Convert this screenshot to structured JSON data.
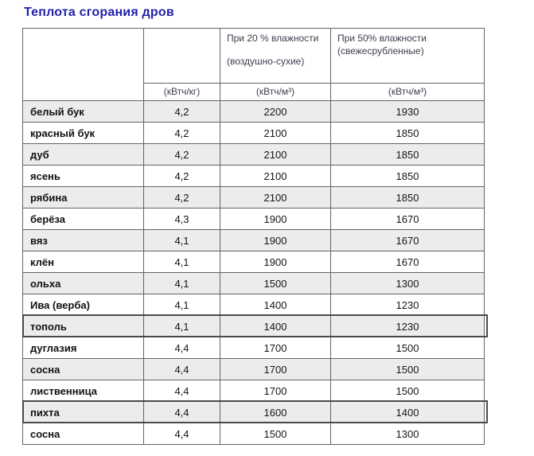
{
  "page_title": "Теплота сгорания дров",
  "colors": {
    "title_blue": "#2323ad",
    "header_text": "#3d3d4d",
    "row_shade": "#ececec",
    "cell_border": "#646464",
    "box_border": "#4a4a4a"
  },
  "table": {
    "header": {
      "moisture20": {
        "line1": "При 20 % влажности",
        "line2": "(воздушно-сухие)"
      },
      "moisture50": {
        "line1": "При 50% влажности",
        "line2": "(свежесрубленные)"
      },
      "unit_kg": "(кВтч/кг)",
      "unit_m3_20": "(кВтч/м³)",
      "unit_m3_50": "(кВтч/м³)"
    },
    "rows": [
      {
        "name": "белый бук",
        "kwh_kg": "4,2",
        "kwh_m3_20": "2200",
        "kwh_m3_50": "1930",
        "shaded": true,
        "boxed": false
      },
      {
        "name": "красный бук",
        "kwh_kg": "4,2",
        "kwh_m3_20": "2100",
        "kwh_m3_50": "1850",
        "shaded": false,
        "boxed": false
      },
      {
        "name": "дуб",
        "kwh_kg": "4,2",
        "kwh_m3_20": "2100",
        "kwh_m3_50": "1850",
        "shaded": true,
        "boxed": false
      },
      {
        "name": "ясень",
        "kwh_kg": "4,2",
        "kwh_m3_20": "2100",
        "kwh_m3_50": "1850",
        "shaded": false,
        "boxed": false
      },
      {
        "name": "рябина",
        "kwh_kg": "4,2",
        "kwh_m3_20": "2100",
        "kwh_m3_50": "1850",
        "shaded": true,
        "boxed": false
      },
      {
        "name": "берёза",
        "kwh_kg": "4,3",
        "kwh_m3_20": "1900",
        "kwh_m3_50": "1670",
        "shaded": false,
        "boxed": false
      },
      {
        "name": "вяз",
        "kwh_kg": "4,1",
        "kwh_m3_20": "1900",
        "kwh_m3_50": "1670",
        "shaded": true,
        "boxed": false
      },
      {
        "name": "клён",
        "kwh_kg": "4,1",
        "kwh_m3_20": "1900",
        "kwh_m3_50": "1670",
        "shaded": false,
        "boxed": false
      },
      {
        "name": "ольха",
        "kwh_kg": "4,1",
        "kwh_m3_20": "1500",
        "kwh_m3_50": "1300",
        "shaded": true,
        "boxed": false
      },
      {
        "name": "Ива (верба)",
        "kwh_kg": "4,1",
        "kwh_m3_20": "1400",
        "kwh_m3_50": "1230",
        "shaded": false,
        "boxed": false
      },
      {
        "name": "тополь",
        "kwh_kg": "4,1",
        "kwh_m3_20": "1400",
        "kwh_m3_50": "1230",
        "shaded": true,
        "boxed": true
      },
      {
        "name": "дуглазия",
        "kwh_kg": "4,4",
        "kwh_m3_20": "1700",
        "kwh_m3_50": "1500",
        "shaded": false,
        "boxed": false
      },
      {
        "name": "сосна",
        "kwh_kg": "4,4",
        "kwh_m3_20": "1700",
        "kwh_m3_50": "1500",
        "shaded": true,
        "boxed": false
      },
      {
        "name": "лиственница",
        "kwh_kg": "4,4",
        "kwh_m3_20": "1700",
        "kwh_m3_50": "1500",
        "shaded": false,
        "boxed": false
      },
      {
        "name": "пихта",
        "kwh_kg": "4,4",
        "kwh_m3_20": "1600",
        "kwh_m3_50": "1400",
        "shaded": true,
        "boxed": true
      },
      {
        "name": "сосна",
        "kwh_kg": "4,4",
        "kwh_m3_20": "1500",
        "kwh_m3_50": "1300",
        "shaded": false,
        "boxed": false
      }
    ]
  }
}
